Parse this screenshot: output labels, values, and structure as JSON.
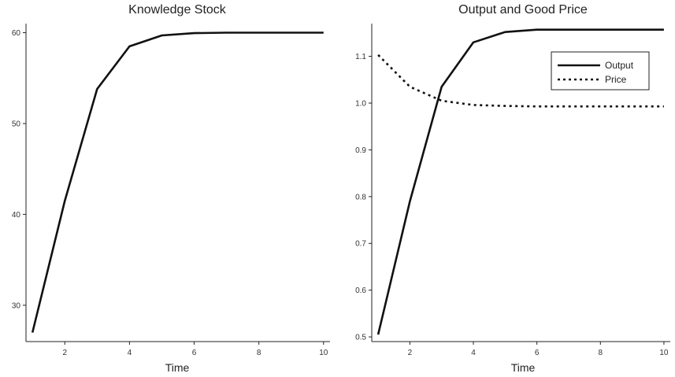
{
  "chart_data": [
    {
      "type": "line",
      "title": "Knowledge Stock",
      "xlabel": "Time",
      "ylabel": "",
      "xlim": [
        0.8,
        10.2
      ],
      "ylim": [
        26,
        61
      ],
      "xticks": [
        2,
        4,
        6,
        8,
        10
      ],
      "yticks": [
        30,
        40,
        50,
        60
      ],
      "grid": false,
      "series": [
        {
          "x": [
            1,
            2,
            3,
            4,
            5,
            6,
            7,
            8,
            9,
            10
          ],
          "values": [
            27.0,
            41.5,
            53.8,
            58.5,
            59.7,
            59.95,
            60.0,
            60.0,
            60.0,
            60.0
          ],
          "style": "solid",
          "color": "#111111"
        }
      ]
    },
    {
      "type": "line",
      "title": "Output and Good Price",
      "xlabel": "Time",
      "ylabel": "",
      "xlim": [
        0.8,
        10.2
      ],
      "ylim": [
        0.49,
        1.17
      ],
      "xticks": [
        2,
        4,
        6,
        8,
        10
      ],
      "yticks": [
        0.5,
        0.6,
        0.7,
        0.8,
        0.9,
        1.0,
        1.1
      ],
      "ytick_labels": [
        "0.5",
        "0.6",
        "0.7",
        "0.8",
        "0.9",
        "1.0",
        "1.1"
      ],
      "grid": false,
      "legend_position": "top-right",
      "series": [
        {
          "name": "Output",
          "x": [
            1,
            2,
            3,
            4,
            5,
            6,
            7,
            8,
            9,
            10
          ],
          "values": [
            0.505,
            0.79,
            1.035,
            1.13,
            1.152,
            1.157,
            1.157,
            1.157,
            1.157,
            1.157
          ],
          "style": "solid",
          "color": "#111111"
        },
        {
          "name": "Price",
          "x": [
            1,
            2,
            3,
            4,
            5,
            6,
            7,
            8,
            9,
            10
          ],
          "values": [
            1.103,
            1.035,
            1.005,
            0.996,
            0.994,
            0.993,
            0.993,
            0.993,
            0.993,
            0.993
          ],
          "style": "dotted",
          "color": "#111111"
        }
      ]
    }
  ]
}
